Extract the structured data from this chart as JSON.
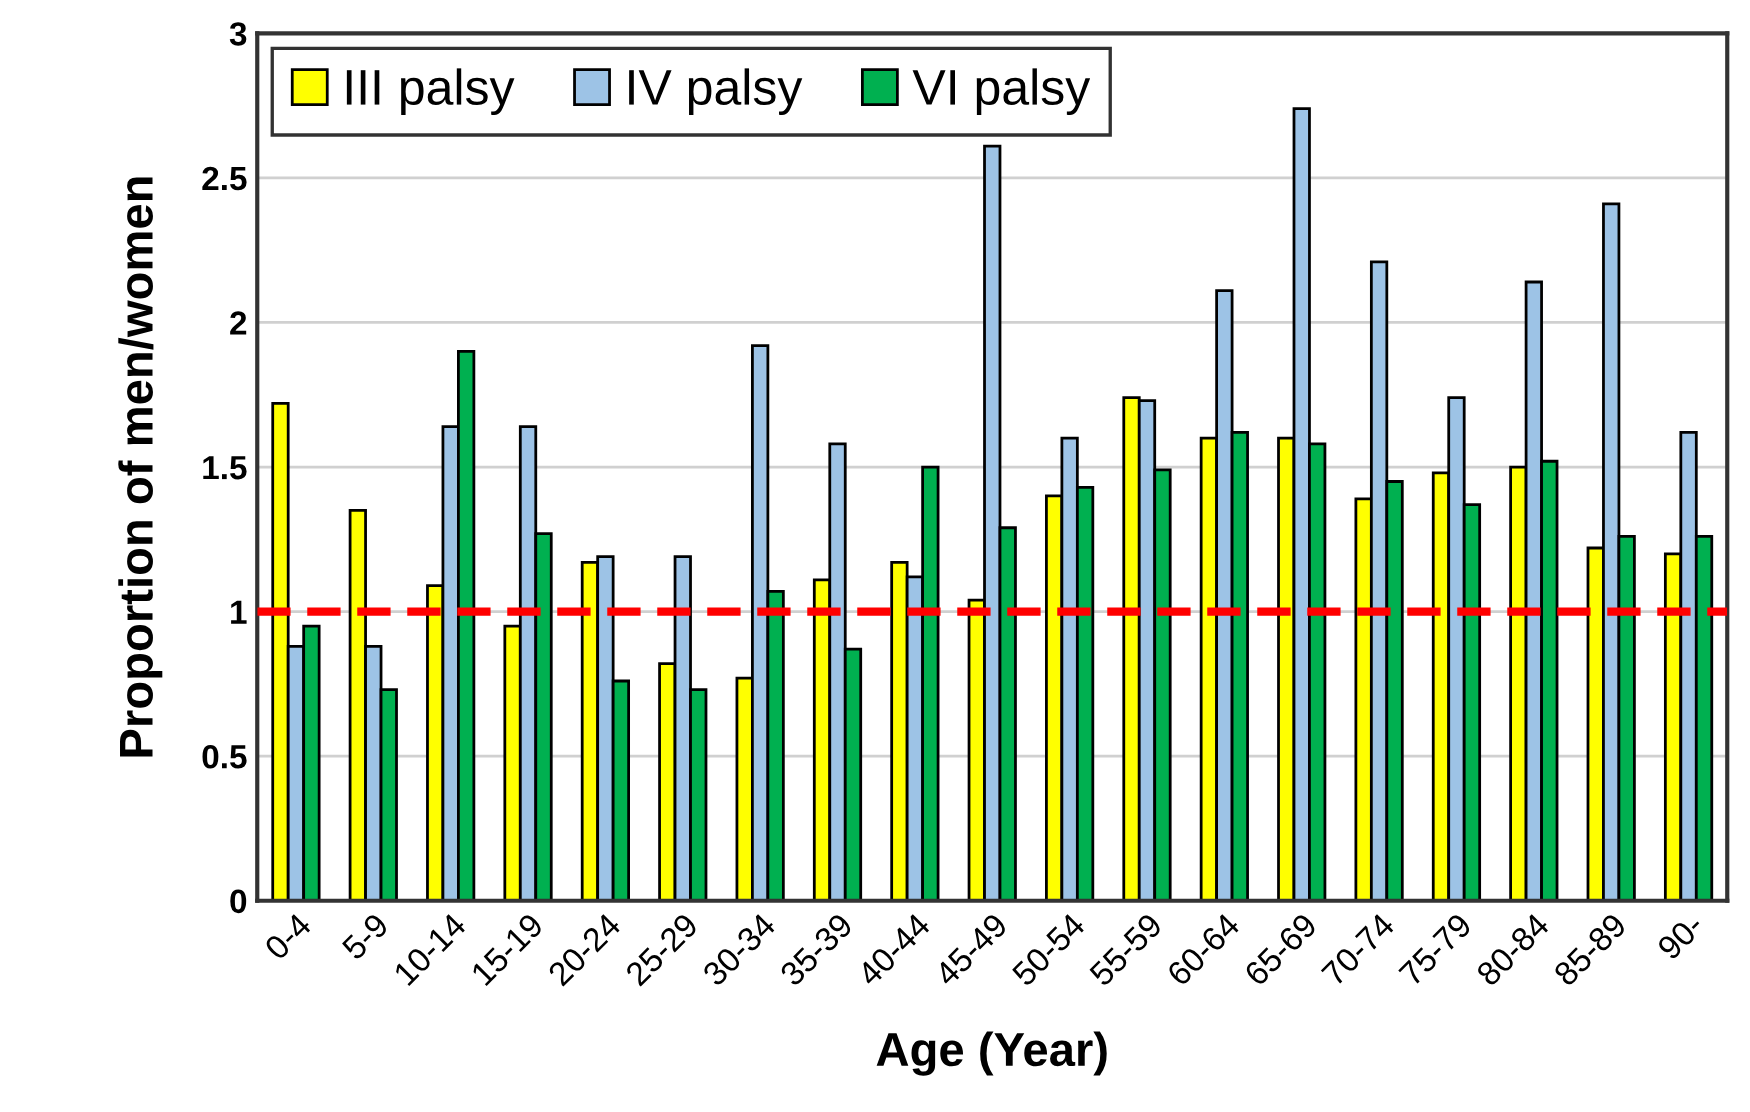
{
  "chart_data": {
    "type": "bar",
    "xlabel": "Age (Year)",
    "ylabel": "Proportion of men/women",
    "categories": [
      "0-4",
      "5-9",
      "10-14",
      "15-19",
      "20-24",
      "25-29",
      "30-34",
      "35-39",
      "40-44",
      "45-49",
      "50-54",
      "55-59",
      "60-64",
      "65-69",
      "70-74",
      "75-79",
      "80-84",
      "85-89",
      "90-"
    ],
    "series": [
      {
        "name": "III palsy",
        "color": "#ffff00",
        "values": [
          1.72,
          1.35,
          1.09,
          0.95,
          1.17,
          0.82,
          0.77,
          1.11,
          1.17,
          1.04,
          1.4,
          1.74,
          1.6,
          1.6,
          1.39,
          1.48,
          1.5,
          1.22,
          1.2
        ]
      },
      {
        "name": "IV palsy",
        "color": "#9dc3e6",
        "values": [
          0.88,
          0.88,
          1.64,
          1.64,
          1.19,
          1.19,
          1.92,
          1.58,
          1.12,
          2.61,
          1.6,
          1.73,
          2.11,
          2.74,
          2.21,
          1.74,
          2.14,
          2.41,
          1.62
        ]
      },
      {
        "name": "VI palsy",
        "color": "#00b050",
        "values": [
          0.95,
          0.73,
          1.9,
          1.27,
          0.76,
          0.73,
          1.07,
          0.87,
          1.5,
          1.29,
          1.43,
          1.49,
          1.62,
          1.58,
          1.45,
          1.37,
          1.52,
          1.26,
          1.26
        ]
      }
    ],
    "ylim": [
      0,
      3
    ],
    "yticks": [
      0,
      0.5,
      1,
      1.5,
      2,
      2.5,
      3
    ],
    "grid": "y",
    "legend": "top left",
    "ref_lines": [
      {
        "axis": "y",
        "value": 1,
        "color": "#ff0000",
        "line_style": "dashed"
      }
    ]
  }
}
